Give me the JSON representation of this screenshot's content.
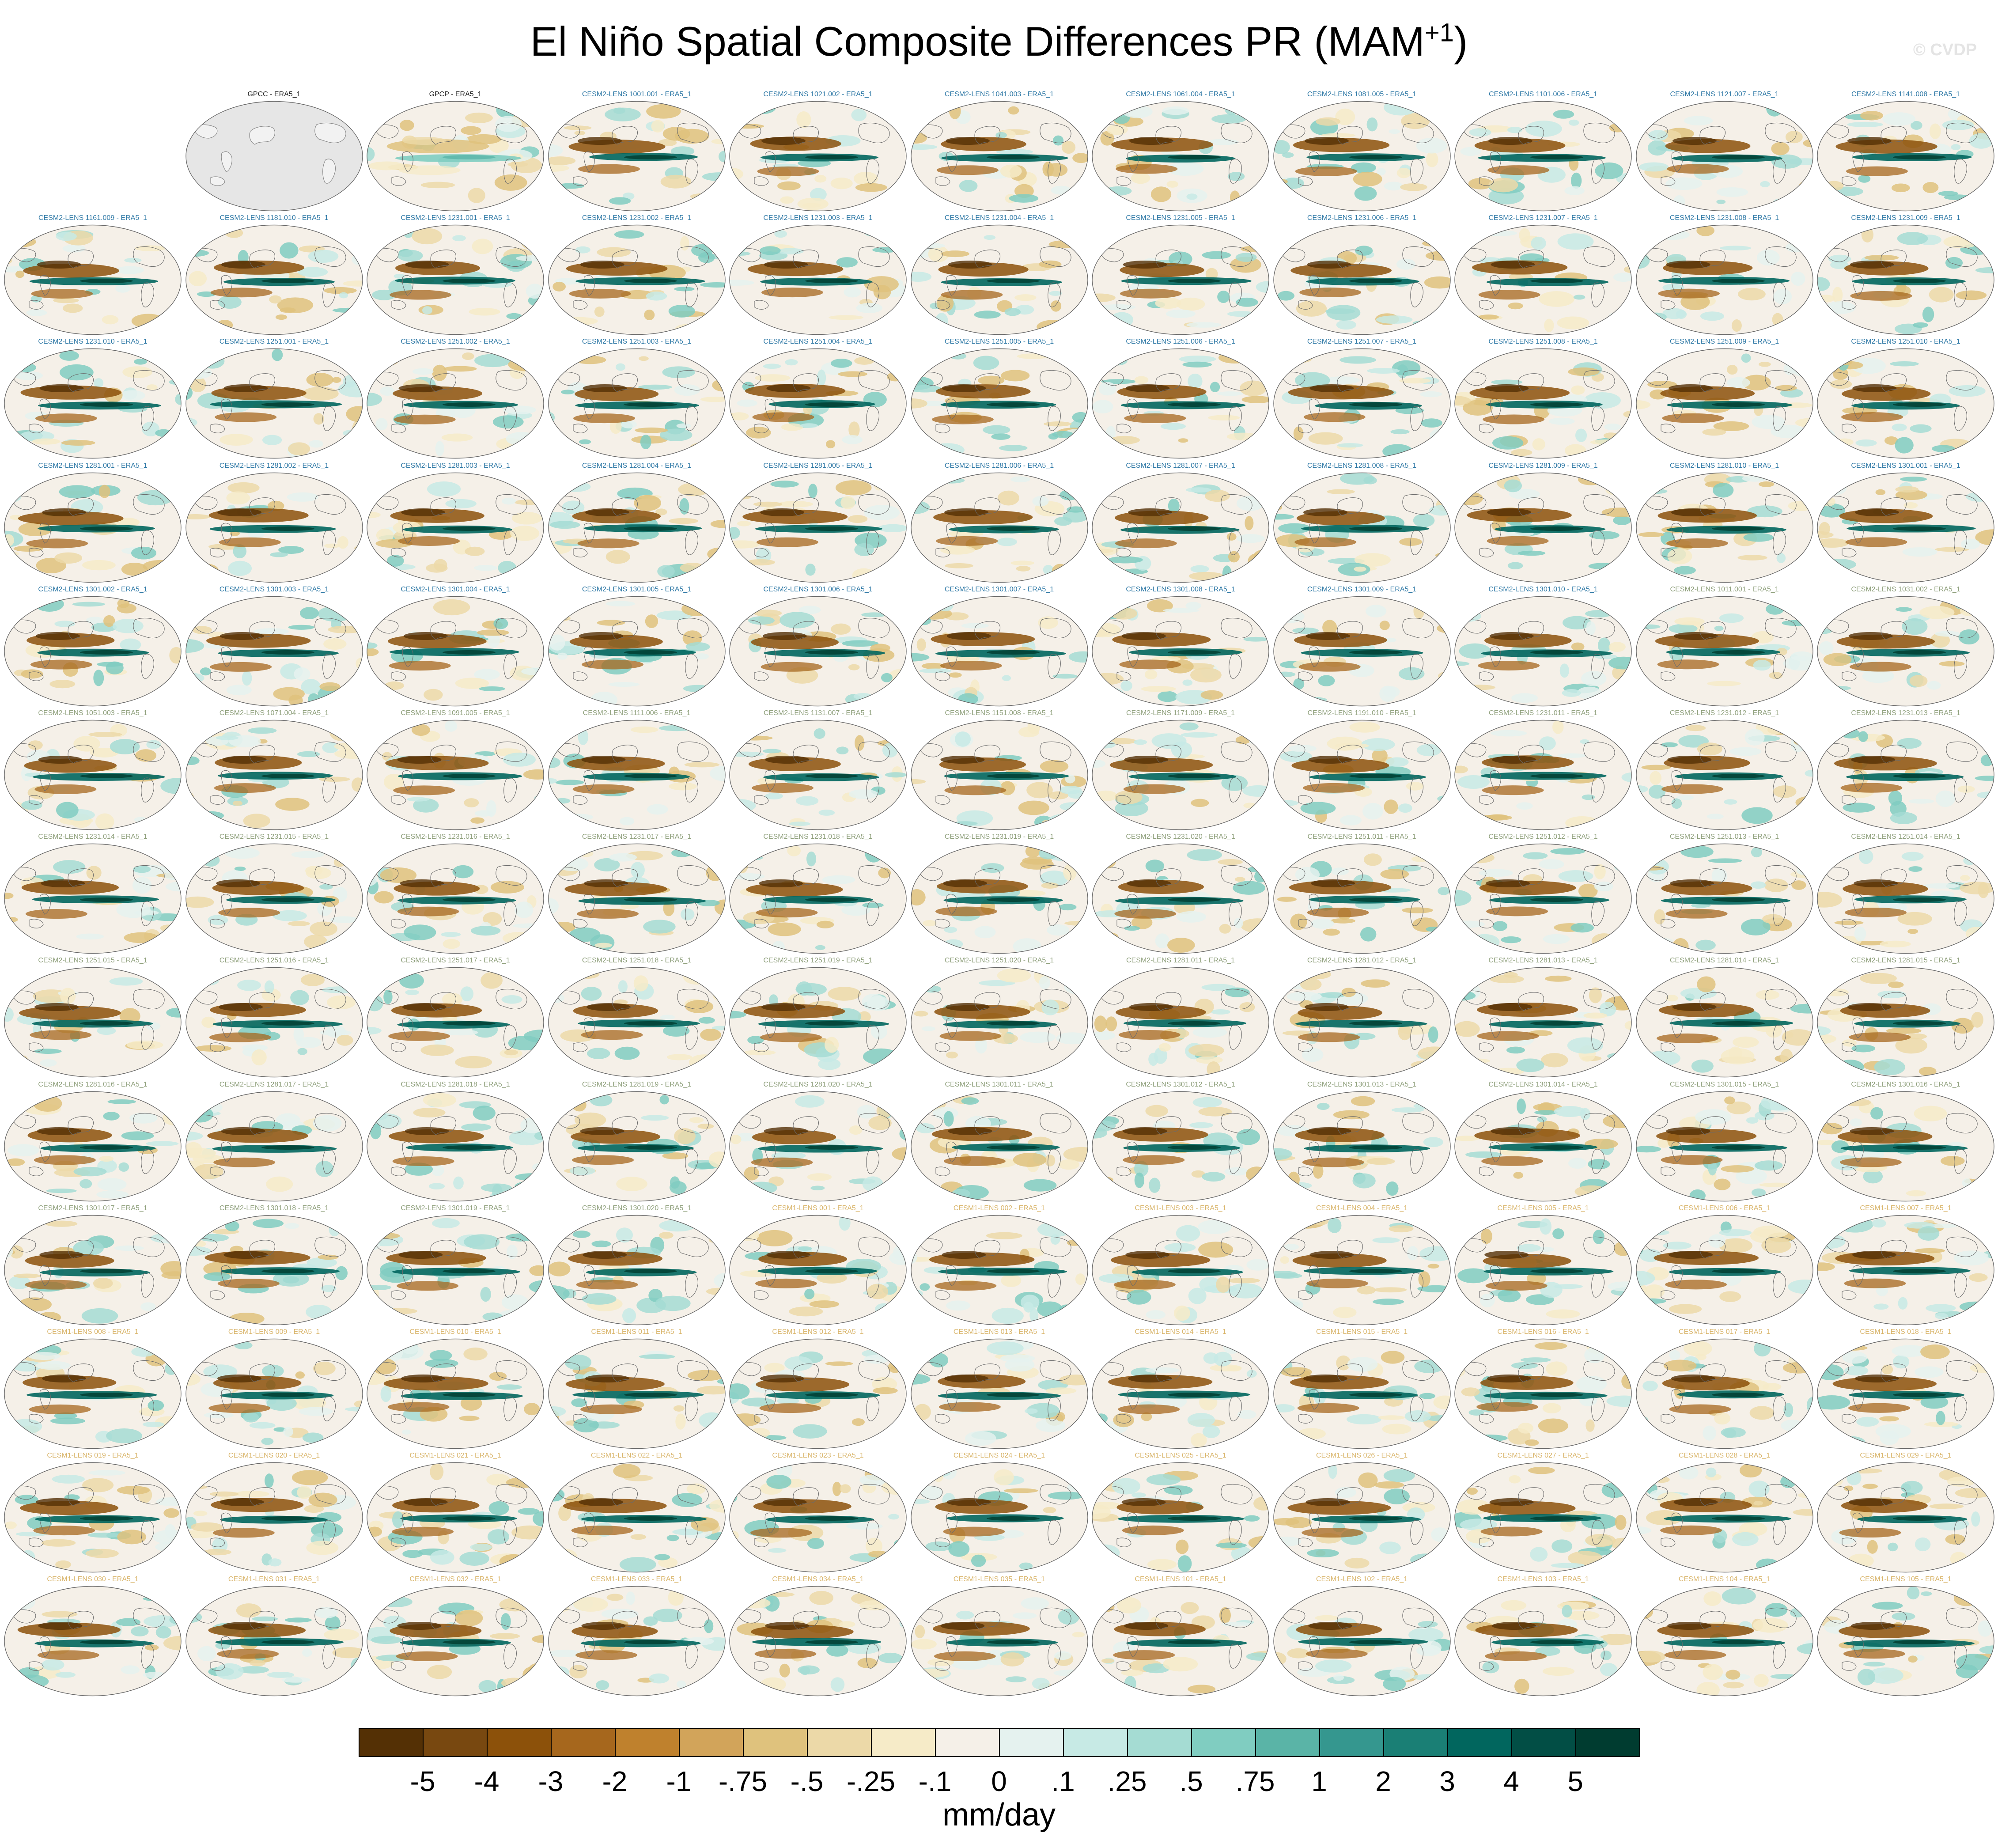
{
  "title": "El Niño Spatial Composite Differences PR (MAM",
  "title_superscript": "+1",
  "title_close": ")",
  "watermark": "© CVDP",
  "units": "mm/day",
  "colorbar": {
    "colors": [
      "#543005",
      "#784810",
      "#8c510a",
      "#a6671d",
      "#bf812d",
      "#d2a45a",
      "#dfc27d",
      "#ecd9a8",
      "#f6ebc8",
      "#f5f0e8",
      "#e5f2ef",
      "#c7eae5",
      "#a5dcd3",
      "#80cdc1",
      "#5ab4a7",
      "#35978f",
      "#1a7f75",
      "#01665e",
      "#024e45",
      "#003c30"
    ],
    "ticks": [
      "-5",
      "-4",
      "-3",
      "-2",
      "-1",
      "-.75",
      "-.5",
      "-.25",
      "-.1",
      "0",
      ".1",
      ".25",
      ".5",
      ".75",
      "1",
      "2",
      "3",
      "4",
      "5"
    ]
  },
  "panels": [
    {
      "label": "GPCC - ERA5_1",
      "group": "obs",
      "col": 1,
      "row": 0,
      "masked": true
    },
    {
      "label": "GPCP - ERA5_1",
      "group": "obs",
      "col": 2,
      "row": 0
    },
    {
      "label": "CESM2-LENS 1001.001 - ERA5_1",
      "group": "c2a",
      "col": 3,
      "row": 0
    },
    {
      "label": "CESM2-LENS 1021.002 - ERA5_1",
      "group": "c2a",
      "col": 4,
      "row": 0
    },
    {
      "label": "CESM2-LENS 1041.003 - ERA5_1",
      "group": "c2a",
      "col": 5,
      "row": 0
    },
    {
      "label": "CESM2-LENS 1061.004 - ERA5_1",
      "group": "c2a",
      "col": 6,
      "row": 0
    },
    {
      "label": "CESM2-LENS 1081.005 - ERA5_1",
      "group": "c2a",
      "col": 7,
      "row": 0
    },
    {
      "label": "CESM2-LENS 1101.006 - ERA5_1",
      "group": "c2a",
      "col": 8,
      "row": 0
    },
    {
      "label": "CESM2-LENS 1121.007 - ERA5_1",
      "group": "c2a",
      "col": 9,
      "row": 0
    },
    {
      "label": "CESM2-LENS 1141.008 - ERA5_1",
      "group": "c2a",
      "col": 10,
      "row": 0
    },
    {
      "label": "CESM2-LENS 1161.009 - ERA5_1",
      "group": "c2a",
      "col": 0,
      "row": 1
    },
    {
      "label": "CESM2-LENS 1181.010 - ERA5_1",
      "group": "c2a",
      "col": 1,
      "row": 1
    },
    {
      "label": "CESM2-LENS 1231.001 - ERA5_1",
      "group": "c2a",
      "col": 2,
      "row": 1
    },
    {
      "label": "CESM2-LENS 1231.002 - ERA5_1",
      "group": "c2a",
      "col": 3,
      "row": 1
    },
    {
      "label": "CESM2-LENS 1231.003 - ERA5_1",
      "group": "c2a",
      "col": 4,
      "row": 1
    },
    {
      "label": "CESM2-LENS 1231.004 - ERA5_1",
      "group": "c2a",
      "col": 5,
      "row": 1
    },
    {
      "label": "CESM2-LENS 1231.005 - ERA5_1",
      "group": "c2a",
      "col": 6,
      "row": 1
    },
    {
      "label": "CESM2-LENS 1231.006 - ERA5_1",
      "group": "c2a",
      "col": 7,
      "row": 1
    },
    {
      "label": "CESM2-LENS 1231.007 - ERA5_1",
      "group": "c2a",
      "col": 8,
      "row": 1
    },
    {
      "label": "CESM2-LENS 1231.008 - ERA5_1",
      "group": "c2a",
      "col": 9,
      "row": 1
    },
    {
      "label": "CESM2-LENS 1231.009 - ERA5_1",
      "group": "c2a",
      "col": 10,
      "row": 1
    },
    {
      "label": "CESM2-LENS 1231.010 - ERA5_1",
      "group": "c2a",
      "col": 0,
      "row": 2
    },
    {
      "label": "CESM2-LENS 1251.001 - ERA5_1",
      "group": "c2a",
      "col": 1,
      "row": 2
    },
    {
      "label": "CESM2-LENS 1251.002 - ERA5_1",
      "group": "c2a",
      "col": 2,
      "row": 2
    },
    {
      "label": "CESM2-LENS 1251.003 - ERA5_1",
      "group": "c2a",
      "col": 3,
      "row": 2
    },
    {
      "label": "CESM2-LENS 1251.004 - ERA5_1",
      "group": "c2a",
      "col": 4,
      "row": 2
    },
    {
      "label": "CESM2-LENS 1251.005 - ERA5_1",
      "group": "c2a",
      "col": 5,
      "row": 2
    },
    {
      "label": "CESM2-LENS 1251.006 - ERA5_1",
      "group": "c2a",
      "col": 6,
      "row": 2
    },
    {
      "label": "CESM2-LENS 1251.007 - ERA5_1",
      "group": "c2a",
      "col": 7,
      "row": 2
    },
    {
      "label": "CESM2-LENS 1251.008 - ERA5_1",
      "group": "c2a",
      "col": 8,
      "row": 2
    },
    {
      "label": "CESM2-LENS 1251.009 - ERA5_1",
      "group": "c2a",
      "col": 9,
      "row": 2
    },
    {
      "label": "CESM2-LENS 1251.010 - ERA5_1",
      "group": "c2a",
      "col": 10,
      "row": 2
    },
    {
      "label": "CESM2-LENS 1281.001 - ERA5_1",
      "group": "c2a",
      "col": 0,
      "row": 3
    },
    {
      "label": "CESM2-LENS 1281.002 - ERA5_1",
      "group": "c2a",
      "col": 1,
      "row": 3
    },
    {
      "label": "CESM2-LENS 1281.003 - ERA5_1",
      "group": "c2a",
      "col": 2,
      "row": 3
    },
    {
      "label": "CESM2-LENS 1281.004 - ERA5_1",
      "group": "c2a",
      "col": 3,
      "row": 3
    },
    {
      "label": "CESM2-LENS 1281.005 - ERA5_1",
      "group": "c2a",
      "col": 4,
      "row": 3
    },
    {
      "label": "CESM2-LENS 1281.006 - ERA5_1",
      "group": "c2a",
      "col": 5,
      "row": 3
    },
    {
      "label": "CESM2-LENS 1281.007 - ERA5_1",
      "group": "c2a",
      "col": 6,
      "row": 3
    },
    {
      "label": "CESM2-LENS 1281.008 - ERA5_1",
      "group": "c2a",
      "col": 7,
      "row": 3
    },
    {
      "label": "CESM2-LENS 1281.009 - ERA5_1",
      "group": "c2a",
      "col": 8,
      "row": 3
    },
    {
      "label": "CESM2-LENS 1281.010 - ERA5_1",
      "group": "c2a",
      "col": 9,
      "row": 3
    },
    {
      "label": "CESM2-LENS 1301.001 - ERA5_1",
      "group": "c2a",
      "col": 10,
      "row": 3
    },
    {
      "label": "CESM2-LENS 1301.002 - ERA5_1",
      "group": "c2a",
      "col": 0,
      "row": 4
    },
    {
      "label": "CESM2-LENS 1301.003 - ERA5_1",
      "group": "c2a",
      "col": 1,
      "row": 4
    },
    {
      "label": "CESM2-LENS 1301.004 - ERA5_1",
      "group": "c2a",
      "col": 2,
      "row": 4
    },
    {
      "label": "CESM2-LENS 1301.005 - ERA5_1",
      "group": "c2a",
      "col": 3,
      "row": 4
    },
    {
      "label": "CESM2-LENS 1301.006 - ERA5_1",
      "group": "c2a",
      "col": 4,
      "row": 4
    },
    {
      "label": "CESM2-LENS 1301.007 - ERA5_1",
      "group": "c2a",
      "col": 5,
      "row": 4
    },
    {
      "label": "CESM2-LENS 1301.008 - ERA5_1",
      "group": "c2a",
      "col": 6,
      "row": 4
    },
    {
      "label": "CESM2-LENS 1301.009 - ERA5_1",
      "group": "c2a",
      "col": 7,
      "row": 4
    },
    {
      "label": "CESM2-LENS 1301.010 - ERA5_1",
      "group": "c2a",
      "col": 8,
      "row": 4
    },
    {
      "label": "CESM2-LENS 1011.001 - ERA5_1",
      "group": "c2b",
      "col": 9,
      "row": 4
    },
    {
      "label": "CESM2-LENS 1031.002 - ERA5_1",
      "group": "c2b",
      "col": 10,
      "row": 4
    },
    {
      "label": "CESM2-LENS 1051.003 - ERA5_1",
      "group": "c2b",
      "col": 0,
      "row": 5
    },
    {
      "label": "CESM2-LENS 1071.004 - ERA5_1",
      "group": "c2b",
      "col": 1,
      "row": 5
    },
    {
      "label": "CESM2-LENS 1091.005 - ERA5_1",
      "group": "c2b",
      "col": 2,
      "row": 5
    },
    {
      "label": "CESM2-LENS 1111.006 - ERA5_1",
      "group": "c2b",
      "col": 3,
      "row": 5
    },
    {
      "label": "CESM2-LENS 1131.007 - ERA5_1",
      "group": "c2b",
      "col": 4,
      "row": 5
    },
    {
      "label": "CESM2-LENS 1151.008 - ERA5_1",
      "group": "c2b",
      "col": 5,
      "row": 5
    },
    {
      "label": "CESM2-LENS 1171.009 - ERA5_1",
      "group": "c2b",
      "col": 6,
      "row": 5
    },
    {
      "label": "CESM2-LENS 1191.010 - ERA5_1",
      "group": "c2b",
      "col": 7,
      "row": 5
    },
    {
      "label": "CESM2-LENS 1231.011 - ERA5_1",
      "group": "c2b",
      "col": 8,
      "row": 5
    },
    {
      "label": "CESM2-LENS 1231.012 - ERA5_1",
      "group": "c2b",
      "col": 9,
      "row": 5
    },
    {
      "label": "CESM2-LENS 1231.013 - ERA5_1",
      "group": "c2b",
      "col": 10,
      "row": 5
    },
    {
      "label": "CESM2-LENS 1231.014 - ERA5_1",
      "group": "c2b",
      "col": 0,
      "row": 6
    },
    {
      "label": "CESM2-LENS 1231.015 - ERA5_1",
      "group": "c2b",
      "col": 1,
      "row": 6
    },
    {
      "label": "CESM2-LENS 1231.016 - ERA5_1",
      "group": "c2b",
      "col": 2,
      "row": 6
    },
    {
      "label": "CESM2-LENS 1231.017 - ERA5_1",
      "group": "c2b",
      "col": 3,
      "row": 6
    },
    {
      "label": "CESM2-LENS 1231.018 - ERA5_1",
      "group": "c2b",
      "col": 4,
      "row": 6
    },
    {
      "label": "CESM2-LENS 1231.019 - ERA5_1",
      "group": "c2b",
      "col": 5,
      "row": 6
    },
    {
      "label": "CESM2-LENS 1231.020 - ERA5_1",
      "group": "c2b",
      "col": 6,
      "row": 6
    },
    {
      "label": "CESM2-LENS 1251.011 - ERA5_1",
      "group": "c2b",
      "col": 7,
      "row": 6
    },
    {
      "label": "CESM2-LENS 1251.012 - ERA5_1",
      "group": "c2b",
      "col": 8,
      "row": 6
    },
    {
      "label": "CESM2-LENS 1251.013 - ERA5_1",
      "group": "c2b",
      "col": 9,
      "row": 6
    },
    {
      "label": "CESM2-LENS 1251.014 - ERA5_1",
      "group": "c2b",
      "col": 10,
      "row": 6
    },
    {
      "label": "CESM2-LENS 1251.015 - ERA5_1",
      "group": "c2b",
      "col": 0,
      "row": 7
    },
    {
      "label": "CESM2-LENS 1251.016 - ERA5_1",
      "group": "c2b",
      "col": 1,
      "row": 7
    },
    {
      "label": "CESM2-LENS 1251.017 - ERA5_1",
      "group": "c2b",
      "col": 2,
      "row": 7
    },
    {
      "label": "CESM2-LENS 1251.018 - ERA5_1",
      "group": "c2b",
      "col": 3,
      "row": 7
    },
    {
      "label": "CESM2-LENS 1251.019 - ERA5_1",
      "group": "c2b",
      "col": 4,
      "row": 7
    },
    {
      "label": "CESM2-LENS 1251.020 - ERA5_1",
      "group": "c2b",
      "col": 5,
      "row": 7
    },
    {
      "label": "CESM2-LENS 1281.011 - ERA5_1",
      "group": "c2b",
      "col": 6,
      "row": 7
    },
    {
      "label": "CESM2-LENS 1281.012 - ERA5_1",
      "group": "c2b",
      "col": 7,
      "row": 7
    },
    {
      "label": "CESM2-LENS 1281.013 - ERA5_1",
      "group": "c2b",
      "col": 8,
      "row": 7
    },
    {
      "label": "CESM2-LENS 1281.014 - ERA5_1",
      "group": "c2b",
      "col": 9,
      "row": 7
    },
    {
      "label": "CESM2-LENS 1281.015 - ERA5_1",
      "group": "c2b",
      "col": 10,
      "row": 7
    },
    {
      "label": "CESM2-LENS 1281.016 - ERA5_1",
      "group": "c2b",
      "col": 0,
      "row": 8
    },
    {
      "label": "CESM2-LENS 1281.017 - ERA5_1",
      "group": "c2b",
      "col": 1,
      "row": 8
    },
    {
      "label": "CESM2-LENS 1281.018 - ERA5_1",
      "group": "c2b",
      "col": 2,
      "row": 8
    },
    {
      "label": "CESM2-LENS 1281.019 - ERA5_1",
      "group": "c2b",
      "col": 3,
      "row": 8
    },
    {
      "label": "CESM2-LENS 1281.020 - ERA5_1",
      "group": "c2b",
      "col": 4,
      "row": 8
    },
    {
      "label": "CESM2-LENS 1301.011 - ERA5_1",
      "group": "c2b",
      "col": 5,
      "row": 8
    },
    {
      "label": "CESM2-LENS 1301.012 - ERA5_1",
      "group": "c2b",
      "col": 6,
      "row": 8
    },
    {
      "label": "CESM2-LENS 1301.013 - ERA5_1",
      "group": "c2b",
      "col": 7,
      "row": 8
    },
    {
      "label": "CESM2-LENS 1301.014 - ERA5_1",
      "group": "c2b",
      "col": 8,
      "row": 8
    },
    {
      "label": "CESM2-LENS 1301.015 - ERA5_1",
      "group": "c2b",
      "col": 9,
      "row": 8
    },
    {
      "label": "CESM2-LENS 1301.016 - ERA5_1",
      "group": "c2b",
      "col": 10,
      "row": 8
    },
    {
      "label": "CESM2-LENS 1301.017 - ERA5_1",
      "group": "c2b",
      "col": 0,
      "row": 9
    },
    {
      "label": "CESM2-LENS 1301.018 - ERA5_1",
      "group": "c2b",
      "col": 1,
      "row": 9
    },
    {
      "label": "CESM2-LENS 1301.019 - ERA5_1",
      "group": "c2b",
      "col": 2,
      "row": 9
    },
    {
      "label": "CESM2-LENS 1301.020 - ERA5_1",
      "group": "c2b",
      "col": 3,
      "row": 9
    },
    {
      "label": "CESM1-LENS 001 - ERA5_1",
      "group": "c1",
      "col": 4,
      "row": 9
    },
    {
      "label": "CESM1-LENS 002 - ERA5_1",
      "group": "c1",
      "col": 5,
      "row": 9
    },
    {
      "label": "CESM1-LENS 003 - ERA5_1",
      "group": "c1",
      "col": 6,
      "row": 9
    },
    {
      "label": "CESM1-LENS 004 - ERA5_1",
      "group": "c1",
      "col": 7,
      "row": 9
    },
    {
      "label": "CESM1-LENS 005 - ERA5_1",
      "group": "c1",
      "col": 8,
      "row": 9
    },
    {
      "label": "CESM1-LENS 006 - ERA5_1",
      "group": "c1",
      "col": 9,
      "row": 9
    },
    {
      "label": "CESM1-LENS 007 - ERA5_1",
      "group": "c1",
      "col": 10,
      "row": 9
    },
    {
      "label": "CESM1-LENS 008 - ERA5_1",
      "group": "c1",
      "col": 0,
      "row": 10
    },
    {
      "label": "CESM1-LENS 009 - ERA5_1",
      "group": "c1",
      "col": 1,
      "row": 10
    },
    {
      "label": "CESM1-LENS 010 - ERA5_1",
      "group": "c1",
      "col": 2,
      "row": 10
    },
    {
      "label": "CESM1-LENS 011 - ERA5_1",
      "group": "c1",
      "col": 3,
      "row": 10
    },
    {
      "label": "CESM1-LENS 012 - ERA5_1",
      "group": "c1",
      "col": 4,
      "row": 10
    },
    {
      "label": "CESM1-LENS 013 - ERA5_1",
      "group": "c1",
      "col": 5,
      "row": 10
    },
    {
      "label": "CESM1-LENS 014 - ERA5_1",
      "group": "c1",
      "col": 6,
      "row": 10
    },
    {
      "label": "CESM1-LENS 015 - ERA5_1",
      "group": "c1",
      "col": 7,
      "row": 10
    },
    {
      "label": "CESM1-LENS 016 - ERA5_1",
      "group": "c1",
      "col": 8,
      "row": 10
    },
    {
      "label": "CESM1-LENS 017 - ERA5_1",
      "group": "c1",
      "col": 9,
      "row": 10
    },
    {
      "label": "CESM1-LENS 018 - ERA5_1",
      "group": "c1",
      "col": 10,
      "row": 10
    },
    {
      "label": "CESM1-LENS 019 - ERA5_1",
      "group": "c1",
      "col": 0,
      "row": 11
    },
    {
      "label": "CESM1-LENS 020 - ERA5_1",
      "group": "c1",
      "col": 1,
      "row": 11
    },
    {
      "label": "CESM1-LENS 021 - ERA5_1",
      "group": "c1",
      "col": 2,
      "row": 11
    },
    {
      "label": "CESM1-LENS 022 - ERA5_1",
      "group": "c1",
      "col": 3,
      "row": 11
    },
    {
      "label": "CESM1-LENS 023 - ERA5_1",
      "group": "c1",
      "col": 4,
      "row": 11
    },
    {
      "label": "CESM1-LENS 024 - ERA5_1",
      "group": "c1",
      "col": 5,
      "row": 11
    },
    {
      "label": "CESM1-LENS 025 - ERA5_1",
      "group": "c1",
      "col": 6,
      "row": 11
    },
    {
      "label": "CESM1-LENS 026 - ERA5_1",
      "group": "c1",
      "col": 7,
      "row": 11
    },
    {
      "label": "CESM1-LENS 027 - ERA5_1",
      "group": "c1",
      "col": 8,
      "row": 11
    },
    {
      "label": "CESM1-LENS 028 - ERA5_1",
      "group": "c1",
      "col": 9,
      "row": 11
    },
    {
      "label": "CESM1-LENS 029 - ERA5_1",
      "group": "c1",
      "col": 10,
      "row": 11
    },
    {
      "label": "CESM1-LENS 030 - ERA5_1",
      "group": "c1",
      "col": 0,
      "row": 12
    },
    {
      "label": "CESM1-LENS 031 - ERA5_1",
      "group": "c1",
      "col": 1,
      "row": 12
    },
    {
      "label": "CESM1-LENS 032 - ERA5_1",
      "group": "c1",
      "col": 2,
      "row": 12
    },
    {
      "label": "CESM1-LENS 033 - ERA5_1",
      "group": "c1",
      "col": 3,
      "row": 12
    },
    {
      "label": "CESM1-LENS 034 - ERA5_1",
      "group": "c1",
      "col": 4,
      "row": 12
    },
    {
      "label": "CESM1-LENS 035 - ERA5_1",
      "group": "c1",
      "col": 5,
      "row": 12
    },
    {
      "label": "CESM1-LENS 101 - ERA5_1",
      "group": "c1",
      "col": 6,
      "row": 12
    },
    {
      "label": "CESM1-LENS 102 - ERA5_1",
      "group": "c1",
      "col": 7,
      "row": 12
    },
    {
      "label": "CESM1-LENS 103 - ERA5_1",
      "group": "c1",
      "col": 8,
      "row": 12
    },
    {
      "label": "CESM1-LENS 104 - ERA5_1",
      "group": "c1",
      "col": 9,
      "row": 12
    },
    {
      "label": "CESM1-LENS 105 - ERA5_1",
      "group": "c1",
      "col": 10,
      "row": 12
    }
  ]
}
